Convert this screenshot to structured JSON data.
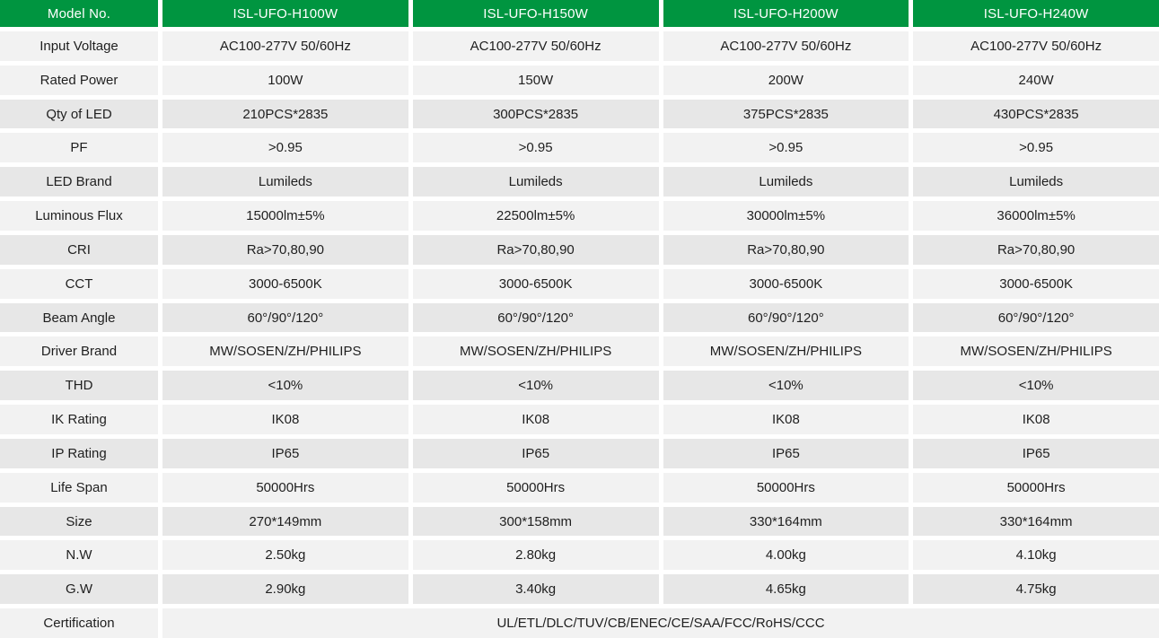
{
  "table": {
    "header": {
      "label": "Model No.",
      "models": [
        "ISL-UFO-H100W",
        "ISL-UFO-H150W",
        "ISL-UFO-H200W",
        "ISL-UFO-H240W"
      ]
    },
    "rows": [
      {
        "label": "Input Voltage",
        "values": [
          "AC100-277V 50/60Hz",
          "AC100-277V 50/60Hz",
          "AC100-277V 50/60Hz",
          "AC100-277V 50/60Hz"
        ]
      },
      {
        "label": "Rated Power",
        "values": [
          "100W",
          "150W",
          "200W",
          "240W"
        ]
      },
      {
        "label": "Qty of LED",
        "values": [
          "210PCS*2835",
          "300PCS*2835",
          "375PCS*2835",
          "430PCS*2835"
        ]
      },
      {
        "label": "PF",
        "values": [
          ">0.95",
          ">0.95",
          ">0.95",
          ">0.95"
        ]
      },
      {
        "label": "LED Brand",
        "values": [
          "Lumileds",
          "Lumileds",
          "Lumileds",
          "Lumileds"
        ]
      },
      {
        "label": "Luminous Flux",
        "values": [
          "15000lm±5%",
          "22500lm±5%",
          "30000lm±5%",
          "36000lm±5%"
        ]
      },
      {
        "label": "CRI",
        "values": [
          "Ra>70,80,90",
          "Ra>70,80,90",
          "Ra>70,80,90",
          "Ra>70,80,90"
        ]
      },
      {
        "label": "CCT",
        "values": [
          "3000-6500K",
          "3000-6500K",
          "3000-6500K",
          "3000-6500K"
        ]
      },
      {
        "label": "Beam Angle",
        "values": [
          "60°/90°/120°",
          "60°/90°/120°",
          "60°/90°/120°",
          "60°/90°/120°"
        ]
      },
      {
        "label": "Driver Brand",
        "values": [
          "MW/SOSEN/ZH/PHILIPS",
          "MW/SOSEN/ZH/PHILIPS",
          "MW/SOSEN/ZH/PHILIPS",
          "MW/SOSEN/ZH/PHILIPS"
        ]
      },
      {
        "label": "THD",
        "values": [
          "<10%",
          "<10%",
          "<10%",
          "<10%"
        ]
      },
      {
        "label": "IK Rating",
        "values": [
          "IK08",
          "IK08",
          "IK08",
          "IK08"
        ]
      },
      {
        "label": "IP Rating",
        "values": [
          "IP65",
          "IP65",
          "IP65",
          "IP65"
        ]
      },
      {
        "label": "Life Span",
        "values": [
          "50000Hrs",
          "50000Hrs",
          "50000Hrs",
          "50000Hrs"
        ]
      },
      {
        "label": "Size",
        "values": [
          "270*149mm",
          "300*158mm",
          "330*164mm",
          "330*164mm"
        ]
      },
      {
        "label": "N.W",
        "values": [
          "2.50kg",
          "2.80kg",
          "4.00kg",
          "4.10kg"
        ]
      },
      {
        "label": "G.W",
        "values": [
          "2.90kg",
          "3.40kg",
          "4.65kg",
          "4.75kg"
        ]
      },
      {
        "label": "Certification",
        "span_value": "UL/ETL/DLC/TUV/CB/ENEC/CE/SAA/FCC/RoHS/CCC"
      }
    ],
    "colors": {
      "header_bg": "#009540",
      "header_text": "#ffffff",
      "row_light": "#f2f2f2",
      "row_dark": "#e7e7e7",
      "text": "#1f1f1f",
      "gap": "#ffffff"
    }
  }
}
